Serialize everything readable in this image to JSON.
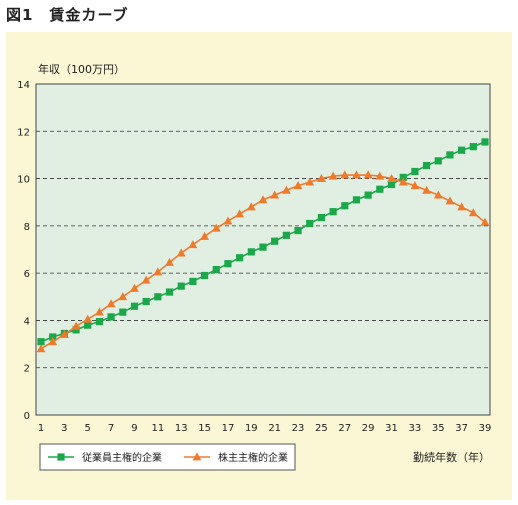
{
  "figure_title": "図1　賃金カーブ",
  "colors": {
    "panel_bg": "#fbf6d3",
    "plot_bg": "#e1efe3",
    "series_employee": "#1aa84a",
    "series_shareholder": "#ef7a2c"
  },
  "chart_data": {
    "type": "line",
    "title": "",
    "ylabel": "年収（100万円）",
    "xlabel": "勤続年数（年）",
    "ylim": [
      0,
      14
    ],
    "yticks": [
      "0",
      "2",
      "4",
      "6",
      "8",
      "10",
      "12",
      "14"
    ],
    "xlim": [
      1,
      39
    ],
    "xticks": [
      "1",
      "3",
      "5",
      "7",
      "9",
      "11",
      "13",
      "15",
      "17",
      "19",
      "21",
      "23",
      "25",
      "27",
      "29",
      "31",
      "33",
      "35",
      "37",
      "39"
    ],
    "grid": "horizontal dashed",
    "legend_position": "bottom-left",
    "x": [
      1,
      2,
      3,
      4,
      5,
      6,
      7,
      8,
      9,
      10,
      11,
      12,
      13,
      14,
      15,
      16,
      17,
      18,
      19,
      20,
      21,
      22,
      23,
      24,
      25,
      26,
      27,
      28,
      29,
      30,
      31,
      32,
      33,
      34,
      35,
      36,
      37,
      38,
      39
    ],
    "series": [
      {
        "name": "従業員主権的企業",
        "marker": "square",
        "values": [
          3.1,
          3.3,
          3.45,
          3.6,
          3.8,
          3.95,
          4.15,
          4.35,
          4.6,
          4.8,
          5.0,
          5.2,
          5.45,
          5.65,
          5.9,
          6.15,
          6.4,
          6.65,
          6.9,
          7.1,
          7.35,
          7.6,
          7.8,
          8.1,
          8.35,
          8.6,
          8.85,
          9.1,
          9.3,
          9.55,
          9.75,
          10.05,
          10.3,
          10.55,
          10.75,
          11.0,
          11.2,
          11.35,
          11.55
        ]
      },
      {
        "name": "株主主権的企業",
        "marker": "triangle",
        "values": [
          2.8,
          3.1,
          3.4,
          3.75,
          4.05,
          4.35,
          4.7,
          5.0,
          5.35,
          5.7,
          6.05,
          6.45,
          6.85,
          7.2,
          7.55,
          7.9,
          8.2,
          8.5,
          8.8,
          9.1,
          9.3,
          9.5,
          9.7,
          9.85,
          10.0,
          10.1,
          10.15,
          10.15,
          10.15,
          10.1,
          10.0,
          9.85,
          9.7,
          9.5,
          9.3,
          9.05,
          8.8,
          8.55,
          8.15
        ]
      }
    ]
  }
}
